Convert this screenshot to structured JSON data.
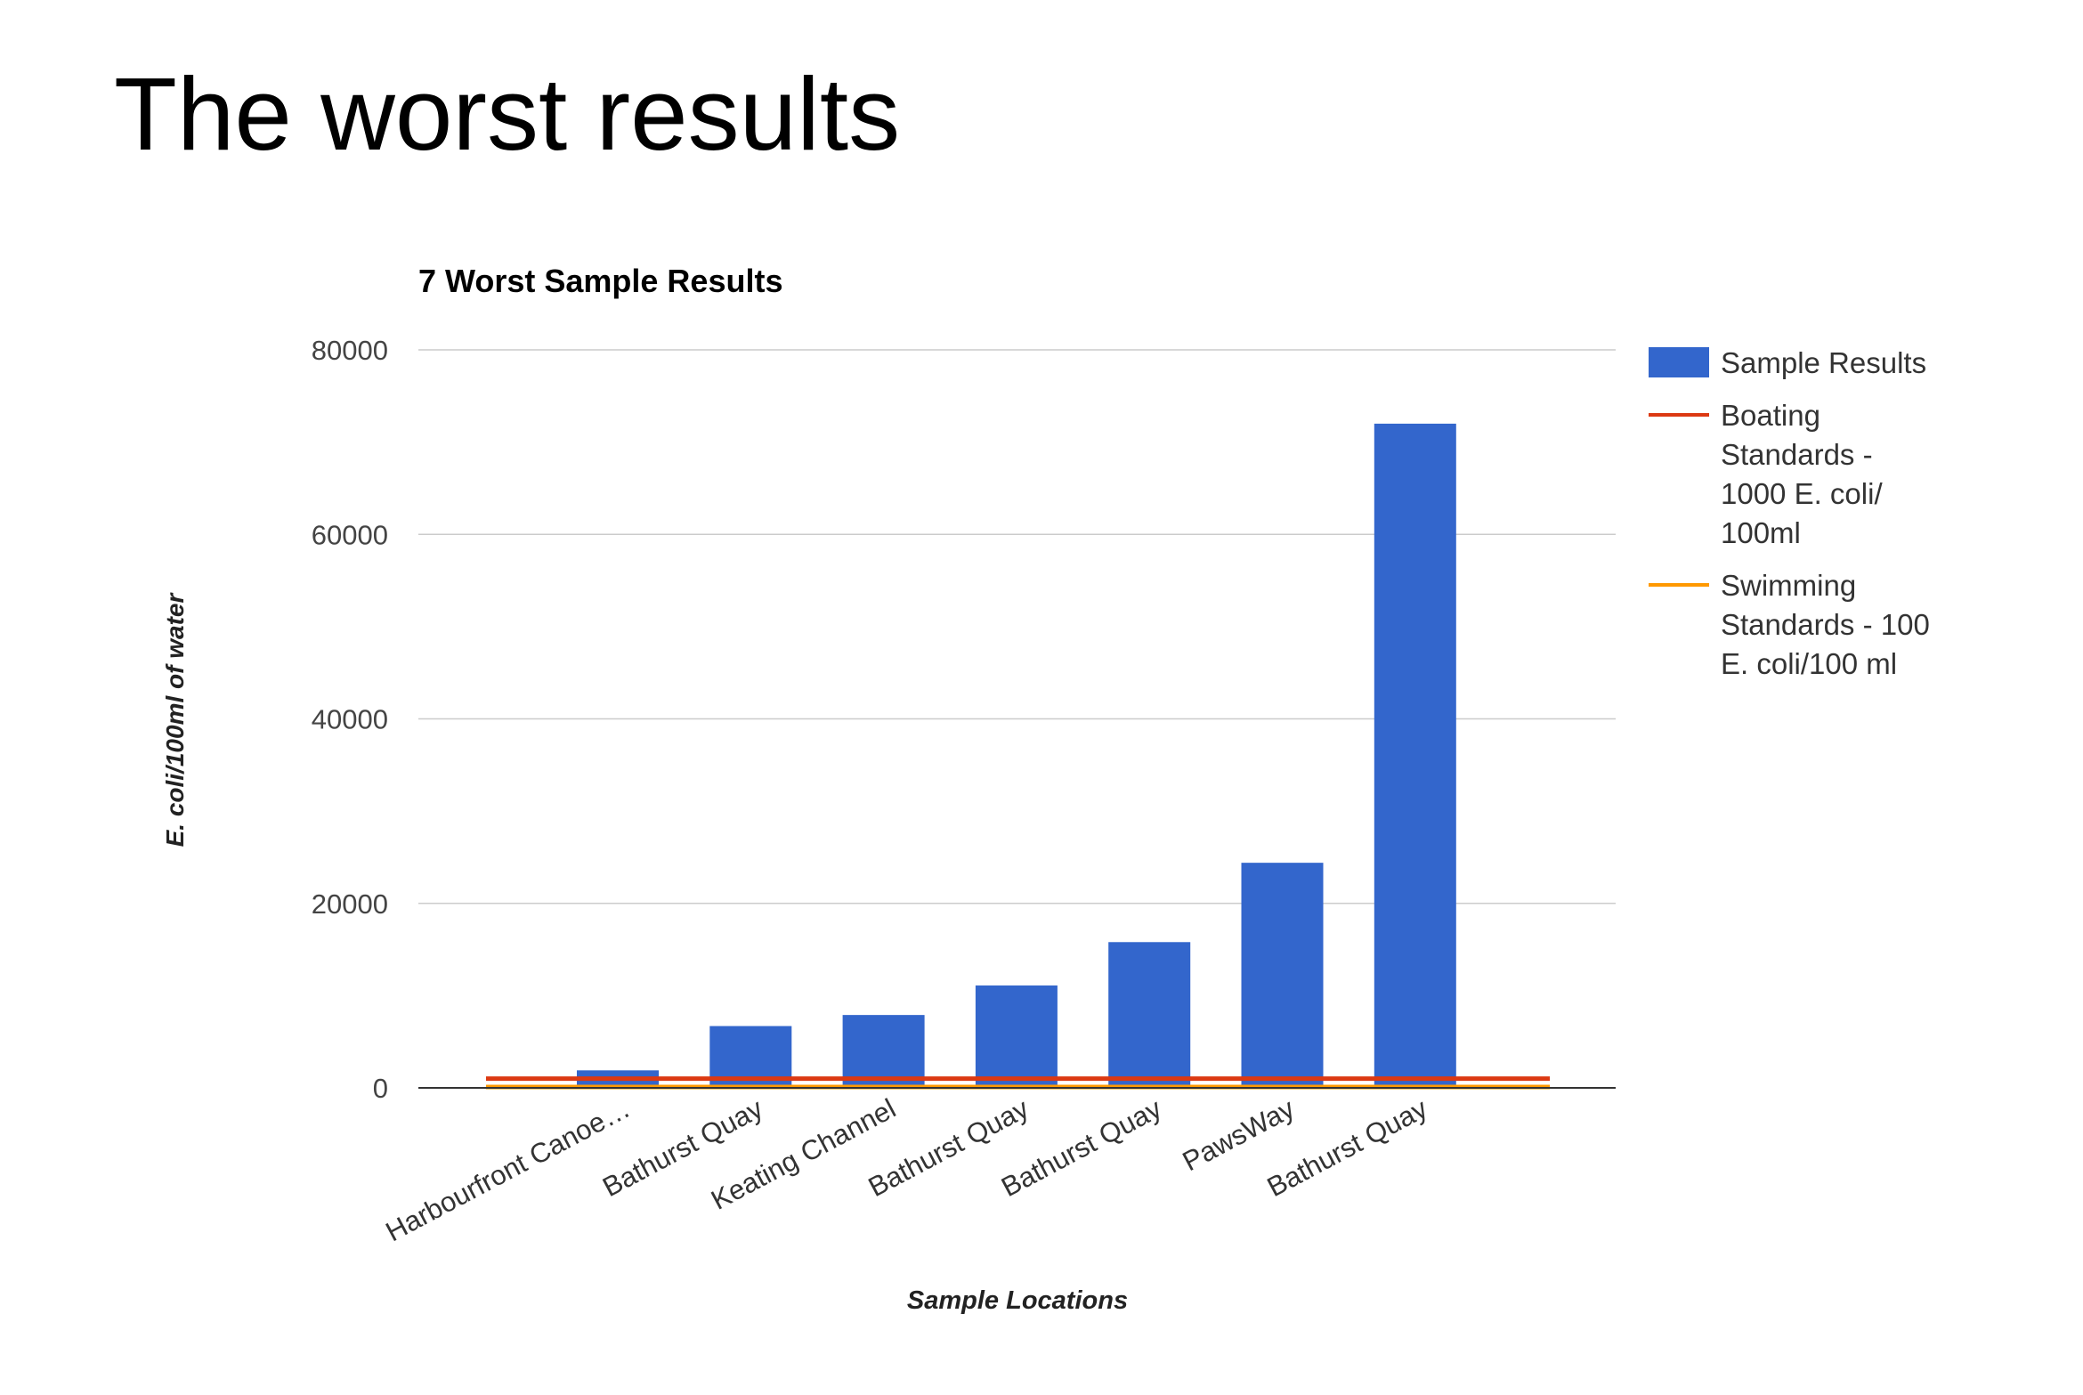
{
  "slide": {
    "title": "The worst results"
  },
  "chart_data": {
    "type": "bar",
    "title": "7 Worst Sample Results",
    "xlabel": "Sample Locations",
    "ylabel": "E. coli/100ml of water",
    "categories": [
      "Harbourfront Canoe…",
      "Bathurst Quay",
      "Keating Channel",
      "Bathurst Quay",
      "Bathurst Quay",
      "PawsWay",
      "Bathurst Quay"
    ],
    "series": [
      {
        "name": "Sample Results",
        "type": "bar",
        "color": "#3366cc",
        "values": [
          1900,
          6700,
          7900,
          11100,
          15800,
          24400,
          72000
        ]
      },
      {
        "name": "Boating Standards - 1000 E. coli/ 100ml",
        "type": "line",
        "color": "#dc3912",
        "values": [
          1000,
          1000,
          1000,
          1000,
          1000,
          1000,
          1000
        ]
      },
      {
        "name": "Swimming Standards - 100 E. coli/100 ml",
        "type": "line",
        "color": "#ff9900",
        "values": [
          100,
          100,
          100,
          100,
          100,
          100,
          100
        ]
      }
    ],
    "legend": [
      {
        "lines": [
          "Sample Results"
        ]
      },
      {
        "lines": [
          "Boating",
          "Standards -",
          "1000 E. coli/",
          "100ml"
        ]
      },
      {
        "lines": [
          "Swimming",
          "Standards - 100",
          "E. coli/100 ml"
        ]
      }
    ],
    "yticks": [
      "0",
      "20000",
      "40000",
      "60000",
      "80000"
    ],
    "ylim": [
      0,
      80000
    ],
    "grid": true,
    "legend_position": "right"
  }
}
